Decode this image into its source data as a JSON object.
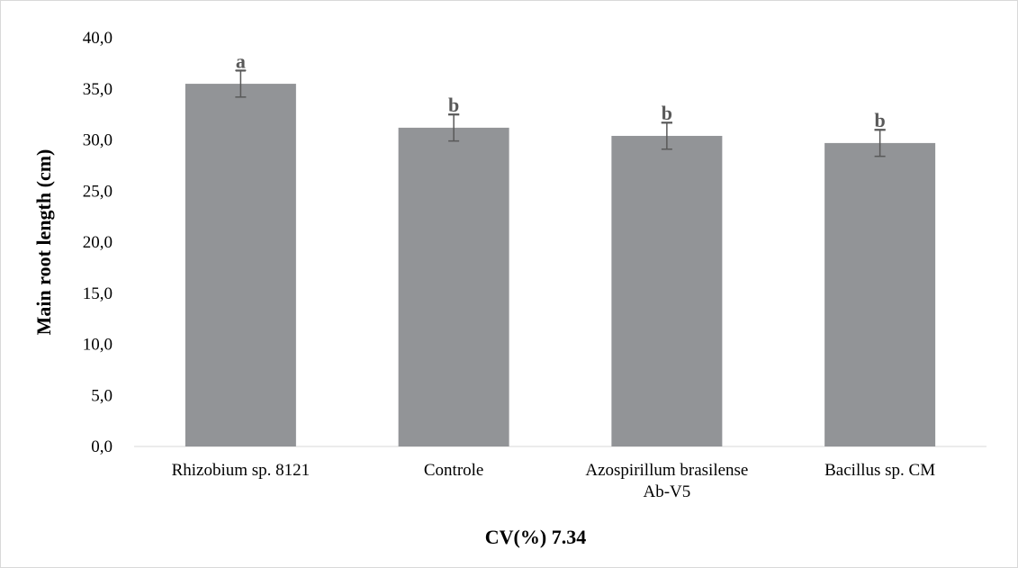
{
  "chart_data": {
    "type": "bar",
    "title": "",
    "ylabel": "Main root length (cm)",
    "xlabel": "CV(%) 7.34",
    "categories": [
      [
        "Rhizobium sp. 8121"
      ],
      [
        "Controle"
      ],
      [
        "Azospirillum brasilense",
        "Ab-V5"
      ],
      [
        "Bacillus sp. CM"
      ]
    ],
    "values": [
      35.5,
      31.2,
      30.4,
      29.7
    ],
    "errors": [
      1.3,
      1.3,
      1.3,
      1.3
    ],
    "significance": [
      "a",
      "b",
      "b",
      "b"
    ],
    "ylim": [
      0,
      40
    ],
    "yticks": [
      "0,0",
      "5,0",
      "10,0",
      "15,0",
      "20,0",
      "25,0",
      "30,0",
      "35,0",
      "40,0"
    ],
    "grid": false,
    "legend": "none",
    "colors": {
      "bar": "#929497",
      "error_bar": "#595959",
      "axis": "#d9d9d9"
    }
  }
}
